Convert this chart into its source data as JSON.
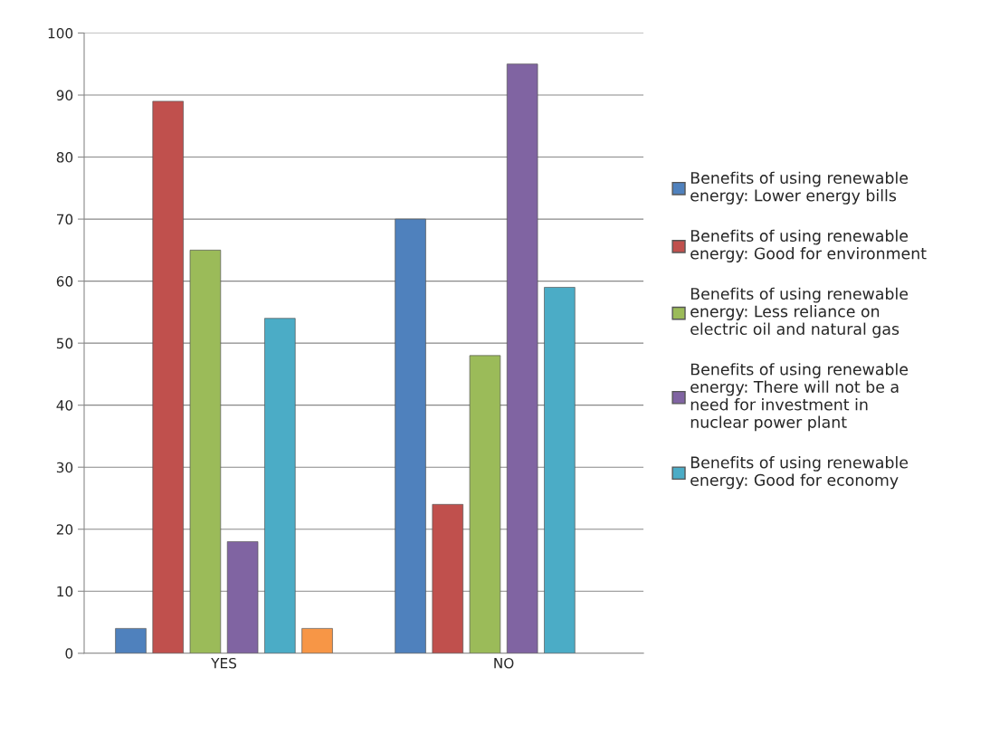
{
  "chart_data": {
    "type": "bar",
    "categories": [
      "YES",
      "NO"
    ],
    "series": [
      {
        "name": "Benefits of using renewable energy: Lower energy bills",
        "color": "#4f81bd",
        "values": [
          4,
          70
        ]
      },
      {
        "name": "Benefits of using renewable energy: Good for environment",
        "color": "#c0504d",
        "values": [
          89,
          24
        ]
      },
      {
        "name": "Benefits of using renewable energy: Less reliance on electric oil and natural gas",
        "color": "#9bbb59",
        "values": [
          65,
          48
        ]
      },
      {
        "name": "Benefits of using renewable energy: There will not be a need for investment in nuclear power plant",
        "color": "#8064a2",
        "values": [
          18,
          95
        ]
      },
      {
        "name": "Benefits of using renewable energy: Good for economy",
        "color": "#4bacc6",
        "values": [
          54,
          59
        ]
      },
      {
        "color": "#f79646",
        "values": [
          4,
          null
        ]
      }
    ],
    "ylim": [
      0,
      100
    ],
    "yticks": [
      0,
      10,
      20,
      30,
      40,
      50,
      60,
      70,
      80,
      90,
      100
    ],
    "grid": "y",
    "legend": "right"
  }
}
